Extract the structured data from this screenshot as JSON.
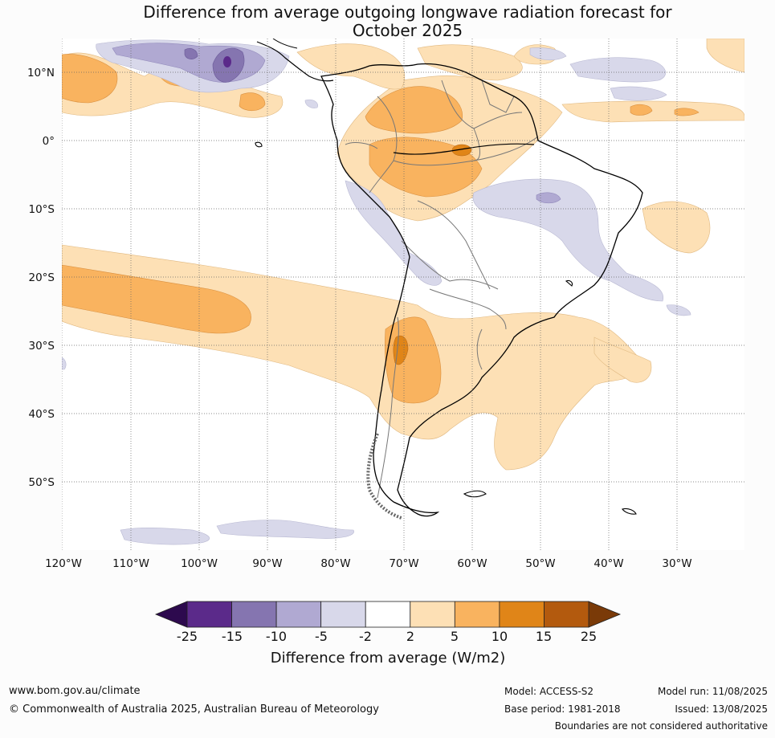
{
  "title": {
    "line1": "Difference from average outgoing longwave radiation forecast for",
    "line2": "October 2025"
  },
  "map": {
    "lat_labels": [
      "10°N",
      "0°",
      "10°S",
      "20°S",
      "30°S",
      "40°S",
      "50°S"
    ],
    "lon_labels": [
      "120°W",
      "110°W",
      "100°W",
      "90°W",
      "80°W",
      "70°W",
      "60°W",
      "50°W",
      "40°W",
      "30°W"
    ]
  },
  "colorbar": {
    "ticks": [
      "-25",
      "-15",
      "-10",
      "-5",
      "-2",
      "2",
      "5",
      "10",
      "15",
      "25"
    ],
    "colors": [
      "#2d0a4e",
      "#5b2a8a",
      "#8575b0",
      "#b0a9d2",
      "#d8d8ea",
      "#ffffff",
      "#fde0b5",
      "#f9b35f",
      "#e08518",
      "#b35a0e",
      "#7a3a08"
    ],
    "label": "Difference from average (W/m2)"
  },
  "footer": {
    "website": "www.bom.gov.au/climate",
    "copyright": "© Commonwealth of Australia 2025, Australian Bureau of Meteorology",
    "model": "Model: ACCESS-S2",
    "base_period": "Base period: 1981-2018",
    "model_run": "Model run: 11/08/2025",
    "issued": "Issued: 13/08/2025",
    "note": "Boundaries are not considered authoritative"
  }
}
